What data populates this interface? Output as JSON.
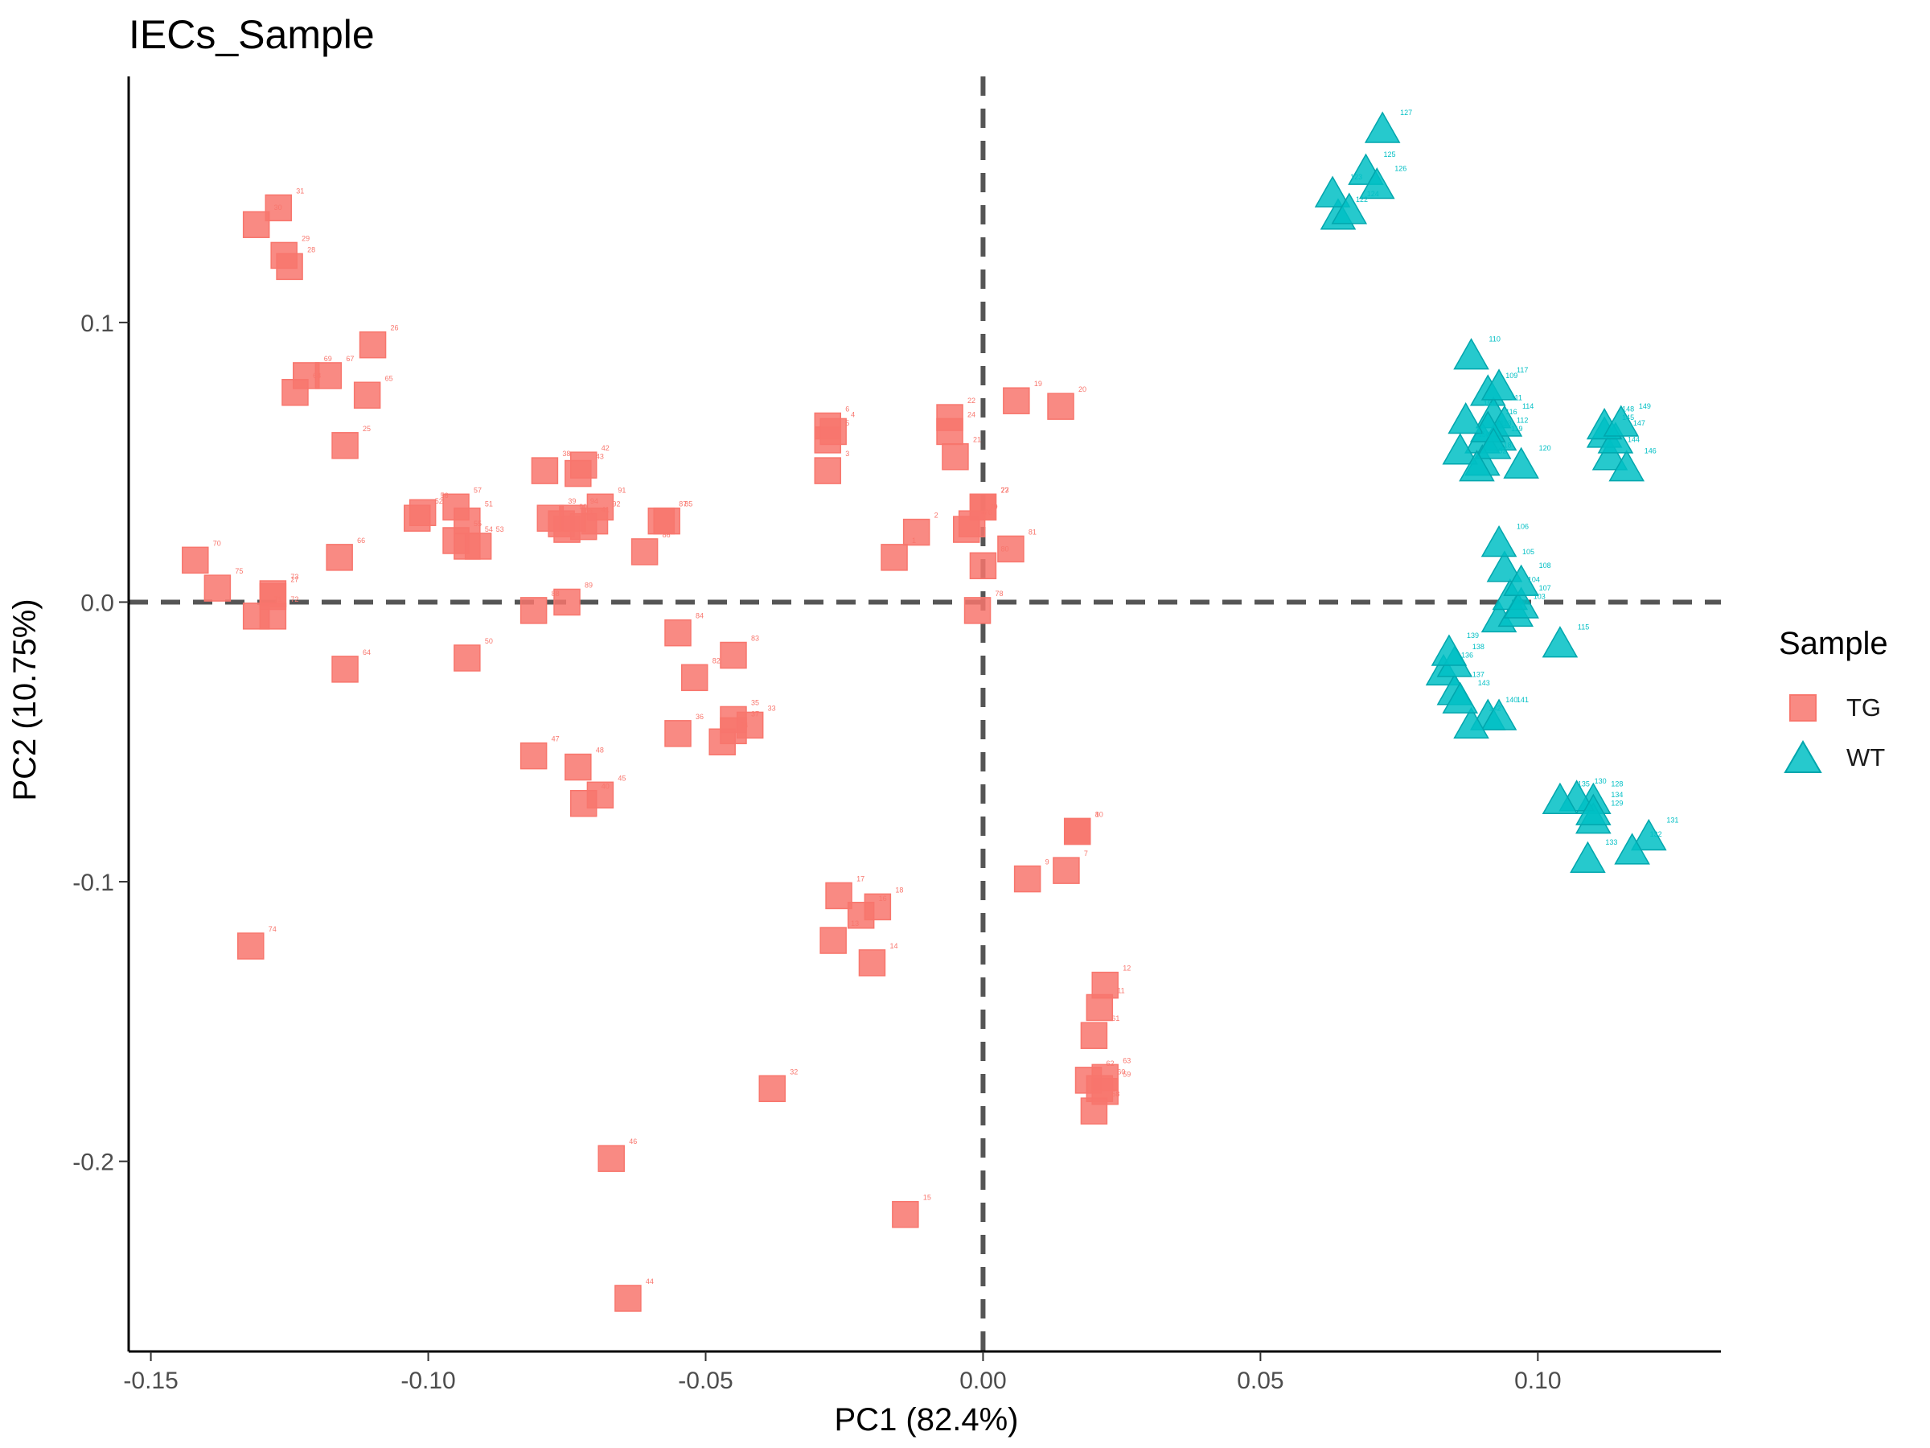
{
  "chart_data": {
    "type": "scatter",
    "title": "IECs_Sample",
    "xlabel": "PC1 (82.4%)",
    "ylabel": "PC2 (10.75%)",
    "xlim": [
      -0.154,
      0.133
    ],
    "ylim": [
      -0.268,
      0.188
    ],
    "x_ticks": [
      -0.15,
      -0.1,
      -0.05,
      0.0,
      0.05,
      0.1
    ],
    "x_tick_labels": [
      "-0.15",
      "-0.10",
      "-0.05",
      "0.00",
      "0.05",
      "0.10"
    ],
    "y_ticks": [
      -0.2,
      -0.1,
      0.0,
      0.1
    ],
    "y_tick_labels": [
      "-0.2",
      "-0.1",
      "0.0",
      "0.1"
    ],
    "reference_lines": {
      "x": 0.0,
      "y": 0.0,
      "style": "dashed"
    },
    "grid": false,
    "legend": {
      "title": "Sample",
      "placement": "right"
    },
    "colors": {
      "TG": "#F8766D",
      "WT": "#00BFC4",
      "reference": "#555555"
    },
    "series": [
      {
        "name": "TG",
        "marker": "square",
        "points": [
          {
            "label": "1",
            "x": -0.016,
            "y": 0.016
          },
          {
            "label": "2",
            "x": -0.012,
            "y": 0.025
          },
          {
            "label": "3",
            "x": -0.028,
            "y": 0.047
          },
          {
            "label": "4",
            "x": -0.027,
            "y": 0.061
          },
          {
            "label": "5",
            "x": -0.028,
            "y": 0.058
          },
          {
            "label": "6",
            "x": -0.028,
            "y": 0.063
          },
          {
            "label": "7",
            "x": 0.015,
            "y": -0.096
          },
          {
            "label": "8",
            "x": 0.017,
            "y": -0.082
          },
          {
            "label": "9",
            "x": 0.008,
            "y": -0.099
          },
          {
            "label": "10",
            "x": 0.017,
            "y": -0.082
          },
          {
            "label": "11",
            "x": 0.021,
            "y": -0.145
          },
          {
            "label": "12",
            "x": 0.022,
            "y": -0.137
          },
          {
            "label": "13",
            "x": -0.027,
            "y": -0.121
          },
          {
            "label": "14",
            "x": -0.02,
            "y": -0.129
          },
          {
            "label": "15",
            "x": -0.014,
            "y": -0.219
          },
          {
            "label": "16",
            "x": -0.022,
            "y": -0.112
          },
          {
            "label": "17",
            "x": -0.026,
            "y": -0.105
          },
          {
            "label": "18",
            "x": -0.019,
            "y": -0.109
          },
          {
            "label": "19",
            "x": 0.006,
            "y": 0.072
          },
          {
            "label": "20",
            "x": 0.014,
            "y": 0.07
          },
          {
            "label": "21",
            "x": -0.005,
            "y": 0.052
          },
          {
            "label": "22",
            "x": -0.006,
            "y": 0.066
          },
          {
            "label": "23",
            "x": 0.0,
            "y": 0.034
          },
          {
            "label": "24",
            "x": -0.006,
            "y": 0.061
          },
          {
            "label": "25",
            "x": -0.115,
            "y": 0.056
          },
          {
            "label": "26",
            "x": -0.11,
            "y": 0.092
          },
          {
            "label": "27",
            "x": -0.128,
            "y": 0.002
          },
          {
            "label": "28",
            "x": -0.125,
            "y": 0.12
          },
          {
            "label": "29",
            "x": -0.126,
            "y": 0.124
          },
          {
            "label": "30",
            "x": -0.131,
            "y": 0.135
          },
          {
            "label": "31",
            "x": -0.127,
            "y": 0.141
          },
          {
            "label": "32",
            "x": -0.038,
            "y": -0.174
          },
          {
            "label": "33",
            "x": -0.042,
            "y": -0.044
          },
          {
            "label": "34",
            "x": -0.047,
            "y": -0.05
          },
          {
            "label": "35",
            "x": -0.045,
            "y": -0.042
          },
          {
            "label": "36",
            "x": -0.055,
            "y": -0.047
          },
          {
            "label": "37",
            "x": -0.045,
            "y": -0.046
          },
          {
            "label": "38",
            "x": -0.079,
            "y": 0.047
          },
          {
            "label": "39",
            "x": -0.078,
            "y": 0.03
          },
          {
            "label": "40",
            "x": -0.072,
            "y": -0.072
          },
          {
            "label": "41",
            "x": -0.072,
            "y": 0.027
          },
          {
            "label": "42",
            "x": -0.072,
            "y": 0.049
          },
          {
            "label": "43",
            "x": -0.073,
            "y": 0.046
          },
          {
            "label": "44",
            "x": -0.064,
            "y": -0.249
          },
          {
            "label": "45",
            "x": -0.069,
            "y": -0.069
          },
          {
            "label": "46",
            "x": -0.067,
            "y": -0.199
          },
          {
            "label": "47",
            "x": -0.081,
            "y": -0.055
          },
          {
            "label": "48",
            "x": -0.073,
            "y": -0.059
          },
          {
            "label": "50",
            "x": -0.093,
            "y": -0.02
          },
          {
            "label": "51",
            "x": -0.093,
            "y": 0.029
          },
          {
            "label": "52",
            "x": -0.102,
            "y": 0.03
          },
          {
            "label": "53",
            "x": -0.091,
            "y": 0.02
          },
          {
            "label": "54",
            "x": -0.093,
            "y": 0.02
          },
          {
            "label": "55",
            "x": -0.095,
            "y": 0.022
          },
          {
            "label": "56",
            "x": -0.101,
            "y": 0.032
          },
          {
            "label": "57",
            "x": -0.095,
            "y": 0.034
          },
          {
            "label": "58",
            "x": 0.02,
            "y": -0.182
          },
          {
            "label": "59",
            "x": 0.022,
            "y": -0.175
          },
          {
            "label": "60",
            "x": 0.021,
            "y": -0.174
          },
          {
            "label": "61",
            "x": 0.02,
            "y": -0.155
          },
          {
            "label": "62",
            "x": 0.019,
            "y": -0.171
          },
          {
            "label": "63",
            "x": 0.022,
            "y": -0.17
          },
          {
            "label": "64",
            "x": -0.115,
            "y": -0.024
          },
          {
            "label": "65",
            "x": -0.111,
            "y": 0.074
          },
          {
            "label": "66",
            "x": -0.116,
            "y": 0.016
          },
          {
            "label": "67",
            "x": -0.118,
            "y": 0.081
          },
          {
            "label": "68",
            "x": -0.124,
            "y": 0.075
          },
          {
            "label": "69",
            "x": -0.122,
            "y": 0.081
          },
          {
            "label": "70",
            "x": -0.142,
            "y": 0.015
          },
          {
            "label": "71",
            "x": -0.131,
            "y": -0.005
          },
          {
            "label": "72",
            "x": -0.128,
            "y": -0.005
          },
          {
            "label": "73",
            "x": -0.128,
            "y": 0.003
          },
          {
            "label": "74",
            "x": -0.132,
            "y": -0.123
          },
          {
            "label": "75",
            "x": -0.138,
            "y": 0.005
          },
          {
            "label": "76",
            "x": -0.003,
            "y": 0.026
          },
          {
            "label": "77",
            "x": 0.0,
            "y": 0.034
          },
          {
            "label": "78",
            "x": -0.001,
            "y": -0.003
          },
          {
            "label": "79",
            "x": -0.002,
            "y": 0.028
          },
          {
            "label": "80",
            "x": 0.0,
            "y": 0.013
          },
          {
            "label": "81",
            "x": 0.005,
            "y": 0.019
          },
          {
            "label": "82",
            "x": -0.052,
            "y": -0.027
          },
          {
            "label": "83",
            "x": -0.045,
            "y": -0.019
          },
          {
            "label": "84",
            "x": -0.055,
            "y": -0.011
          },
          {
            "label": "85",
            "x": -0.057,
            "y": 0.029
          },
          {
            "label": "86",
            "x": -0.061,
            "y": 0.018
          },
          {
            "label": "87",
            "x": -0.058,
            "y": 0.029
          },
          {
            "label": "88",
            "x": -0.081,
            "y": -0.003
          },
          {
            "label": "89",
            "x": -0.075,
            "y": 0.0
          },
          {
            "label": "90",
            "x": -0.076,
            "y": 0.028
          },
          {
            "label": "91",
            "x": -0.069,
            "y": 0.034
          },
          {
            "label": "92",
            "x": -0.07,
            "y": 0.029
          },
          {
            "label": "93",
            "x": -0.075,
            "y": 0.026
          },
          {
            "label": "94",
            "x": -0.074,
            "y": 0.03
          }
        ]
      },
      {
        "name": "WT",
        "marker": "triangle",
        "points": [
          {
            "label": "102",
            "x": 0.093,
            "y": -0.006
          },
          {
            "label": "103",
            "x": 0.096,
            "y": -0.004
          },
          {
            "label": "104",
            "x": 0.095,
            "y": 0.002
          },
          {
            "label": "105",
            "x": 0.094,
            "y": 0.012
          },
          {
            "label": "106",
            "x": 0.093,
            "y": 0.021
          },
          {
            "label": "107",
            "x": 0.097,
            "y": -0.001
          },
          {
            "label": "108",
            "x": 0.097,
            "y": 0.007
          },
          {
            "label": "109",
            "x": 0.091,
            "y": 0.075
          },
          {
            "label": "110",
            "x": 0.088,
            "y": 0.088
          },
          {
            "label": "111",
            "x": 0.092,
            "y": 0.067
          },
          {
            "label": "112",
            "x": 0.093,
            "y": 0.059
          },
          {
            "label": "113",
            "x": 0.09,
            "y": 0.058
          },
          {
            "label": "114",
            "x": 0.094,
            "y": 0.064
          },
          {
            "label": "115",
            "x": 0.104,
            "y": -0.015
          },
          {
            "label": "116",
            "x": 0.091,
            "y": 0.062
          },
          {
            "label": "117",
            "x": 0.093,
            "y": 0.077
          },
          {
            "label": "118",
            "x": 0.09,
            "y": 0.05
          },
          {
            "label": "119",
            "x": 0.092,
            "y": 0.056
          },
          {
            "label": "120",
            "x": 0.097,
            "y": 0.049
          },
          {
            "label": "122",
            "x": 0.064,
            "y": 0.138
          },
          {
            "label": "123",
            "x": 0.063,
            "y": 0.146
          },
          {
            "label": "124",
            "x": 0.066,
            "y": 0.14
          },
          {
            "label": "125",
            "x": 0.069,
            "y": 0.154
          },
          {
            "label": "126",
            "x": 0.071,
            "y": 0.149
          },
          {
            "label": "127",
            "x": 0.072,
            "y": 0.169
          },
          {
            "label": "128",
            "x": 0.11,
            "y": -0.071
          },
          {
            "label": "129",
            "x": 0.11,
            "y": -0.078
          },
          {
            "label": "130",
            "x": 0.107,
            "y": -0.07
          },
          {
            "label": "131",
            "x": 0.12,
            "y": -0.084
          },
          {
            "label": "132",
            "x": 0.117,
            "y": -0.089
          },
          {
            "label": "133",
            "x": 0.109,
            "y": -0.092
          },
          {
            "label": "134",
            "x": 0.11,
            "y": -0.075
          },
          {
            "label": "135",
            "x": 0.104,
            "y": -0.071
          },
          {
            "label": "136",
            "x": 0.083,
            "y": -0.025
          },
          {
            "label": "137",
            "x": 0.085,
            "y": -0.032
          },
          {
            "label": "138",
            "x": 0.085,
            "y": -0.022
          },
          {
            "label": "139",
            "x": 0.084,
            "y": -0.018
          },
          {
            "label": "140",
            "x": 0.091,
            "y": -0.041
          },
          {
            "label": "141",
            "x": 0.093,
            "y": -0.041
          },
          {
            "label": "142",
            "x": 0.088,
            "y": -0.044
          },
          {
            "label": "143",
            "x": 0.086,
            "y": -0.035
          },
          {
            "label": "144",
            "x": 0.113,
            "y": 0.052
          },
          {
            "label": "145",
            "x": 0.112,
            "y": 0.06
          },
          {
            "label": "146",
            "x": 0.116,
            "y": 0.048
          },
          {
            "label": "147",
            "x": 0.114,
            "y": 0.058
          },
          {
            "label": "148",
            "x": 0.112,
            "y": 0.063
          },
          {
            "label": "149",
            "x": 0.115,
            "y": 0.064
          },
          {
            "label": "150",
            "x": 0.086,
            "y": 0.054
          },
          {
            "label": "151",
            "x": 0.087,
            "y": 0.065
          },
          {
            "label": "152",
            "x": 0.089,
            "y": 0.048
          }
        ]
      }
    ]
  }
}
